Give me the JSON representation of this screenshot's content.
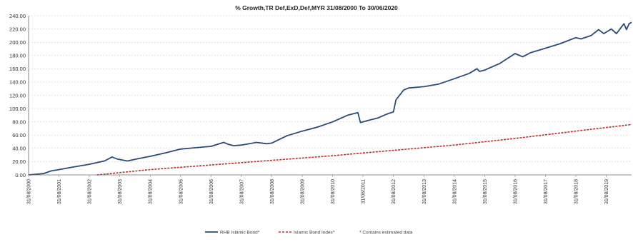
{
  "chart_data": {
    "type": "line",
    "title": "% Growth,TR Def,ExD,Def,MYR 31/08/2000 To 30/06/2020",
    "xlabel": "",
    "ylabel": "",
    "ylim": [
      0,
      240
    ],
    "grid": "horizontal",
    "legend_position": "bottom",
    "y_ticks": [
      "0.00",
      "20.00",
      "40.00",
      "60.00",
      "80.00",
      "100.00",
      "120.00",
      "140.00",
      "160.00",
      "180.00",
      "200.00",
      "220.00",
      "240.00"
    ],
    "x_ticks": [
      "31/08/2000",
      "31/08/2001",
      "31/08/2002",
      "31/08/2003",
      "31/08/2004",
      "31/08/2005",
      "31/08/2006",
      "31/08/2007",
      "31/08/2008",
      "31/08/2009",
      "31/08/2010",
      "31/08/2011",
      "31/08/2012",
      "31/08/2013",
      "31/08/2014",
      "31/08/2015",
      "31/08/2016",
      "31/08/2017",
      "31/08/2018",
      "31/08/2019"
    ],
    "x_range": [
      "2000-08-31",
      "2020-06-30"
    ],
    "series": [
      {
        "name": "RHB Islamic Bond*",
        "color": "#2b4a78",
        "style": "solid",
        "points": [
          [
            "2000-08-31",
            0
          ],
          [
            "2001-02-28",
            2
          ],
          [
            "2001-05-31",
            6
          ],
          [
            "2001-08-31",
            8
          ],
          [
            "2002-02-28",
            12
          ],
          [
            "2002-08-31",
            16
          ],
          [
            "2003-02-28",
            21
          ],
          [
            "2003-05-31",
            27
          ],
          [
            "2003-07-31",
            24
          ],
          [
            "2003-11-30",
            21
          ],
          [
            "2004-04-30",
            25
          ],
          [
            "2004-08-31",
            28
          ],
          [
            "2005-02-28",
            33
          ],
          [
            "2005-08-31",
            39
          ],
          [
            "2006-02-28",
            41
          ],
          [
            "2006-08-31",
            43
          ],
          [
            "2007-01-31",
            49
          ],
          [
            "2007-03-31",
            46
          ],
          [
            "2007-05-31",
            44
          ],
          [
            "2007-08-31",
            45
          ],
          [
            "2008-02-29",
            49
          ],
          [
            "2008-06-30",
            47
          ],
          [
            "2008-08-31",
            48
          ],
          [
            "2009-02-28",
            59
          ],
          [
            "2009-08-31",
            66
          ],
          [
            "2010-02-28",
            72
          ],
          [
            "2010-08-31",
            80
          ],
          [
            "2011-02-28",
            90
          ],
          [
            "2011-06-30",
            94
          ],
          [
            "2011-07-31",
            79
          ],
          [
            "2011-10-31",
            82
          ],
          [
            "2012-02-29",
            86
          ],
          [
            "2012-05-31",
            91
          ],
          [
            "2012-08-31",
            95
          ],
          [
            "2012-09-30",
            113
          ],
          [
            "2012-12-31",
            128
          ],
          [
            "2013-02-28",
            131
          ],
          [
            "2013-08-31",
            133
          ],
          [
            "2014-02-28",
            137
          ],
          [
            "2014-08-31",
            145
          ],
          [
            "2015-02-28",
            153
          ],
          [
            "2015-05-31",
            160
          ],
          [
            "2015-06-30",
            156
          ],
          [
            "2015-08-31",
            158
          ],
          [
            "2016-02-29",
            168
          ],
          [
            "2016-08-31",
            183
          ],
          [
            "2016-11-30",
            178
          ],
          [
            "2017-02-28",
            184
          ],
          [
            "2017-08-31",
            191
          ],
          [
            "2018-02-28",
            198
          ],
          [
            "2018-08-31",
            207
          ],
          [
            "2018-10-31",
            205
          ],
          [
            "2019-02-28",
            210
          ],
          [
            "2019-05-31",
            219
          ],
          [
            "2019-07-31",
            213
          ],
          [
            "2019-10-31",
            220
          ],
          [
            "2019-12-31",
            213
          ],
          [
            "2020-03-31",
            228
          ],
          [
            "2020-04-30",
            219
          ],
          [
            "2020-05-31",
            228
          ],
          [
            "2020-06-30",
            230
          ]
        ]
      },
      {
        "name": "Islamic Bond Index*",
        "color": "#b8332b",
        "style": "dashed",
        "points": [
          [
            "2002-11-30",
            0
          ],
          [
            "2004-08-31",
            8
          ],
          [
            "2006-08-31",
            15
          ],
          [
            "2008-08-31",
            22
          ],
          [
            "2010-08-31",
            29
          ],
          [
            "2012-08-31",
            37
          ],
          [
            "2014-08-31",
            45
          ],
          [
            "2016-08-31",
            55
          ],
          [
            "2018-08-31",
            66
          ],
          [
            "2020-06-30",
            76
          ]
        ]
      }
    ],
    "footnote": "* Contains estimated data"
  }
}
